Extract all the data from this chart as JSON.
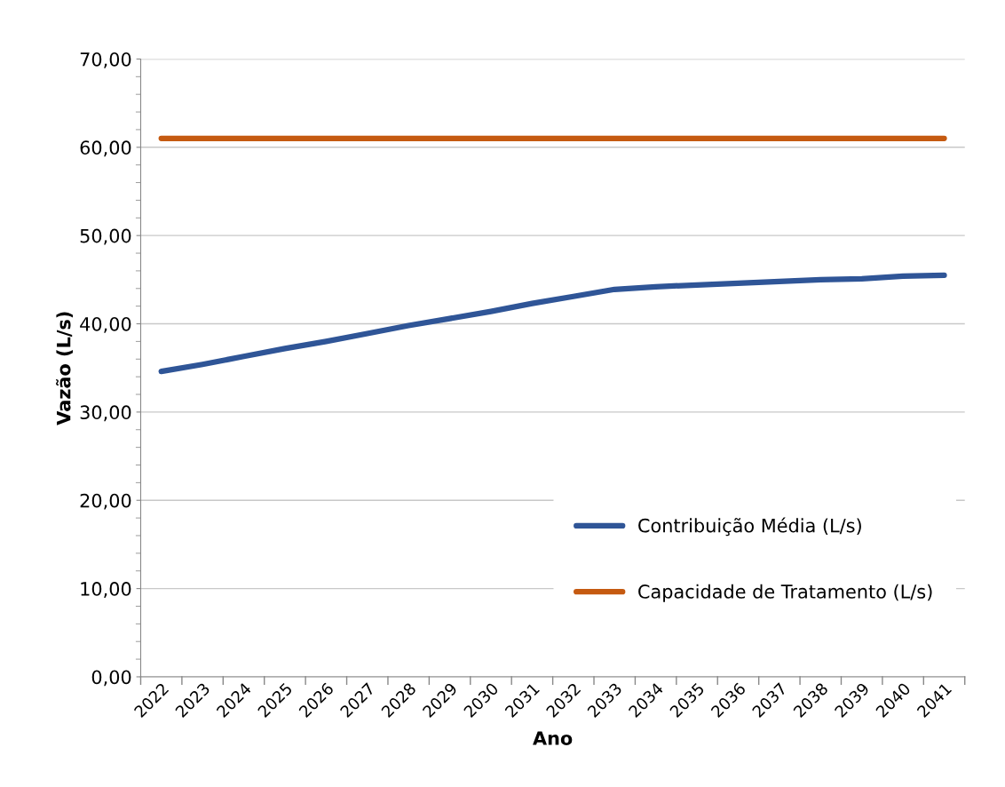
{
  "chart_data": {
    "type": "line",
    "xlabel": "Ano",
    "ylabel": "Vazão (L/s)",
    "categories": [
      "2022",
      "2023",
      "2024",
      "2025",
      "2026",
      "2027",
      "2028",
      "2029",
      "2030",
      "2031",
      "2032",
      "2033",
      "2034",
      "2035",
      "2036",
      "2037",
      "2038",
      "2039",
      "2040",
      "2041"
    ],
    "series": [
      {
        "name": "Contribuição Média (L/s)",
        "color": "#2f5597",
        "values": [
          34.6,
          35.4,
          36.3,
          37.2,
          38.0,
          38.9,
          39.8,
          40.6,
          41.4,
          42.3,
          43.1,
          43.9,
          44.2,
          44.4,
          44.6,
          44.8,
          45.0,
          45.1,
          45.4,
          45.5
        ]
      },
      {
        "name": "Capacidade de Tratamento (L/s)",
        "color": "#c55a11",
        "values": [
          61,
          61,
          61,
          61,
          61,
          61,
          61,
          61,
          61,
          61,
          61,
          61,
          61,
          61,
          61,
          61,
          61,
          61,
          61,
          61
        ]
      }
    ],
    "ylim": [
      0,
      70
    ],
    "yticks": [
      {
        "value": 0,
        "label": "0,00"
      },
      {
        "value": 10,
        "label": "10,00"
      },
      {
        "value": 20,
        "label": "20,00"
      },
      {
        "value": 30,
        "label": "30,00"
      },
      {
        "value": 40,
        "label": "40,00"
      },
      {
        "value": 50,
        "label": "50,00"
      },
      {
        "value": 60,
        "label": "60,00"
      },
      {
        "value": 70,
        "label": "70,00"
      }
    ],
    "grid": "y",
    "legend": "bottom right",
    "marker": "none",
    "line_style": "solid"
  }
}
